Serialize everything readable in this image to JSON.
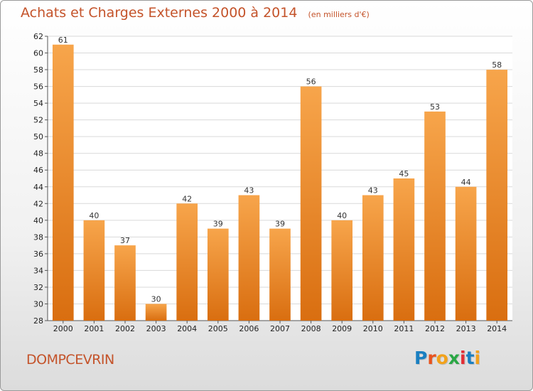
{
  "header": {
    "title": "Achats et Charges Externes 2000 à 2014",
    "subtitle": "(en milliers d'€)"
  },
  "footer": {
    "commune": "DOMPCEVRIN",
    "logo_text": "Proxiti",
    "logo_colors": [
      "#1a7fc1",
      "#e8531e",
      "#f2a21b",
      "#2aa745",
      "#e22d35",
      "#1a7fc1",
      "#f2a21b"
    ]
  },
  "colors": {
    "bar_light": "#f7a54b",
    "bar_dark": "#d96e10",
    "title": "#c4532a",
    "grid": "#d9d9d9"
  },
  "chart_data": {
    "type": "bar",
    "title": "Achats et Charges Externes 2000 à 2014",
    "subtitle": "(en milliers d'€)",
    "categories": [
      "2000",
      "2001",
      "2002",
      "2003",
      "2004",
      "2005",
      "2006",
      "2007",
      "2008",
      "2009",
      "2010",
      "2011",
      "2012",
      "2013",
      "2014"
    ],
    "values": [
      61,
      40,
      37,
      30,
      42,
      39,
      43,
      39,
      56,
      40,
      43,
      45,
      53,
      44,
      58
    ],
    "ylim": [
      28,
      62
    ],
    "yticks": [
      28,
      30,
      32,
      34,
      36,
      38,
      40,
      42,
      44,
      46,
      48,
      50,
      52,
      54,
      56,
      58,
      60,
      62
    ],
    "grid": true,
    "legend": "none"
  }
}
